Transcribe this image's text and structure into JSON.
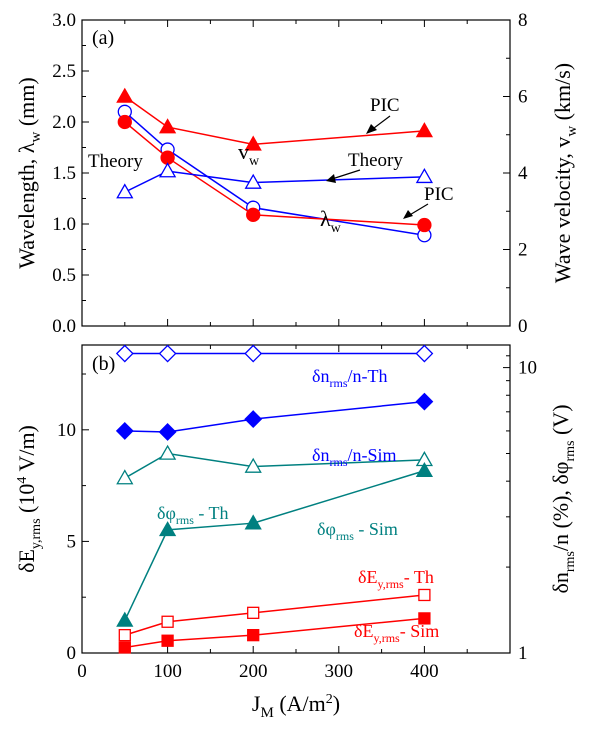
{
  "chart_data": [
    {
      "type": "line",
      "panel_label": "(a)",
      "x": [
        50,
        100,
        200,
        400
      ],
      "xlim": [
        0,
        500
      ],
      "ylabel_left": "Wavelength, λw (mm)",
      "ylim_left": [
        0,
        3
      ],
      "left_ticks": [
        "0.0",
        "0.5",
        "1.0",
        "1.5",
        "2.0",
        "2.5",
        "3.0"
      ],
      "ylabel_right": "Wave velocity, vw (km/s)",
      "ylim_right": [
        0,
        8
      ],
      "right_ticks": [
        "0",
        "2",
        "4",
        "6",
        "8"
      ],
      "series": [
        {
          "axis": "left",
          "color": "#0000ff",
          "marker": "circle-open",
          "values": [
            2.1,
            1.73,
            1.16,
            0.89
          ]
        },
        {
          "axis": "left",
          "color": "#ff0000",
          "marker": "circle-filled",
          "values": [
            2.0,
            1.65,
            1.09,
            0.99
          ]
        },
        {
          "axis": "right",
          "color": "#ff0000",
          "marker": "triangle-filled",
          "values": [
            6.0,
            5.2,
            4.75,
            5.1
          ]
        },
        {
          "axis": "right",
          "color": "#0000ff",
          "marker": "triangle-open",
          "values": [
            3.5,
            4.05,
            3.75,
            3.9
          ]
        }
      ],
      "annotations": {
        "pic_top": "PIC",
        "vw": "v",
        "vw_sub": "w",
        "theory_left": "Theory",
        "theory_right": "Theory",
        "lambda": "λ",
        "lambda_sub": "w",
        "pic_bottom": "PIC"
      }
    },
    {
      "type": "line",
      "panel_label": "(b)",
      "x": [
        50,
        100,
        200,
        400
      ],
      "xlim": [
        0,
        500
      ],
      "x_ticks": [
        "0",
        "100",
        "200",
        "300",
        "400"
      ],
      "xlabel": "JM (A/m²)",
      "ylabel_left": "δEy,rms (10⁴ V/m)",
      "ylim_left": [
        0,
        13.8
      ],
      "left_ticks": [
        "0",
        "5",
        "10"
      ],
      "ylabel_right": "δnrms/n (%), δφrms (V)",
      "ylim_right": [
        1,
        12
      ],
      "y_scale_right": "log",
      "right_ticks": [
        "1",
        "10"
      ],
      "series": [
        {
          "name": "δnrms/n-Th",
          "axis": "right",
          "color": "#0000ff",
          "marker": "diamond-open",
          "values": [
            11.2,
            11.2,
            11.2,
            11.2
          ]
        },
        {
          "name": "δnrms/n-Sim",
          "axis": "right",
          "color": "#0000ff",
          "marker": "diamond-filled",
          "values": [
            6.0,
            5.95,
            6.6,
            7.6
          ]
        },
        {
          "name": "δφrms - Th",
          "axis": "right",
          "color": "#008080",
          "marker": "triangle-open",
          "values": [
            4.1,
            5.0,
            4.5,
            4.75
          ]
        },
        {
          "name": "δφrms - Sim",
          "axis": "right",
          "color": "#008080",
          "marker": "triangle-filled",
          "values": [
            1.3,
            2.7,
            2.85,
            4.35
          ]
        },
        {
          "name": "δEy,rms - Th",
          "axis": "left",
          "color": "#ff0000",
          "marker": "square-open",
          "values": [
            0.8,
            1.4,
            1.8,
            2.6
          ]
        },
        {
          "name": "δEy,rms - Sim",
          "axis": "left",
          "color": "#ff0000",
          "marker": "square-filled",
          "values": [
            0.25,
            0.55,
            0.8,
            1.55
          ]
        }
      ],
      "annotations": {
        "dn_th": {
          "pre": "δn",
          "sub": "rms",
          "post": "/n-Th"
        },
        "dn_sim": {
          "pre": "δn",
          "sub": "rms",
          "post": "/n-Sim"
        },
        "dphi_th": {
          "pre": "δφ",
          "sub": "rms",
          "post": " - Th"
        },
        "dphi_sim": {
          "pre": "δφ",
          "sub": "rms",
          "post": " - Sim"
        },
        "de_th": {
          "pre": "δE",
          "sub": "y,rms",
          "post": "- Th"
        },
        "de_sim": {
          "pre": "δE",
          "sub": "y,rms",
          "post": "- Sim"
        }
      }
    }
  ]
}
